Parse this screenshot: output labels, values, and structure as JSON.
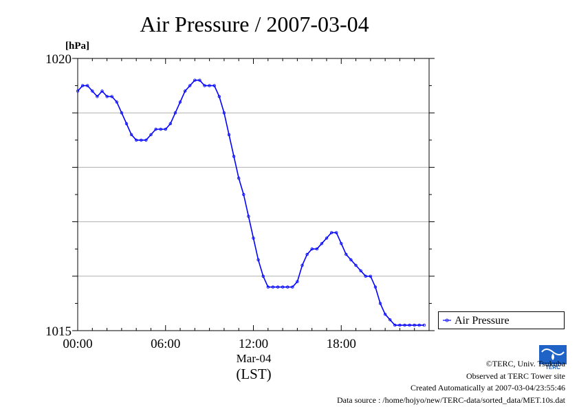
{
  "chart_data": {
    "type": "line",
    "title": "Air Pressure / 2007-03-04",
    "ylabel": "[hPa]",
    "xlabel": "Mar-04",
    "xunit": "(LST)",
    "ylim": [
      1015,
      1020
    ],
    "xlim": [
      "00:00",
      "24:00"
    ],
    "x_ticks": [
      "00:00",
      "06:00",
      "12:00",
      "18:00"
    ],
    "y_ticks": [
      "1015",
      "1020"
    ],
    "grid": "horizontal",
    "legend_position": "right, bottom",
    "series": [
      {
        "name": "Air Pressure",
        "color": "#0000ff",
        "x": [
          "00:00",
          "00:20",
          "00:40",
          "01:00",
          "01:20",
          "01:40",
          "02:00",
          "02:20",
          "02:40",
          "03:00",
          "03:20",
          "03:40",
          "04:00",
          "04:20",
          "04:40",
          "05:00",
          "05:20",
          "05:40",
          "06:00",
          "06:20",
          "06:40",
          "07:00",
          "07:20",
          "07:40",
          "08:00",
          "08:20",
          "08:40",
          "09:00",
          "09:20",
          "09:40",
          "10:00",
          "10:20",
          "10:40",
          "11:00",
          "11:20",
          "11:40",
          "12:00",
          "12:20",
          "12:40",
          "13:00",
          "13:20",
          "13:40",
          "14:00",
          "14:20",
          "14:40",
          "15:00",
          "15:20",
          "15:40",
          "16:00",
          "16:20",
          "16:40",
          "17:00",
          "17:20",
          "17:40",
          "18:00",
          "18:20",
          "18:40",
          "19:00",
          "19:20",
          "19:40",
          "20:00",
          "20:20",
          "20:40",
          "21:00",
          "21:20",
          "21:40",
          "22:00",
          "22:20",
          "22:40",
          "23:00",
          "23:20",
          "23:40"
        ],
        "values": [
          1019.4,
          1019.5,
          1019.5,
          1019.4,
          1019.3,
          1019.4,
          1019.3,
          1019.3,
          1019.2,
          1019.0,
          1018.8,
          1018.6,
          1018.5,
          1018.5,
          1018.5,
          1018.6,
          1018.7,
          1018.7,
          1018.7,
          1018.8,
          1019.0,
          1019.2,
          1019.4,
          1019.5,
          1019.6,
          1019.6,
          1019.5,
          1019.5,
          1019.5,
          1019.3,
          1019.0,
          1018.6,
          1018.2,
          1017.8,
          1017.5,
          1017.1,
          1016.7,
          1016.3,
          1016.0,
          1015.8,
          1015.8,
          1015.8,
          1015.8,
          1015.8,
          1015.8,
          1015.9,
          1016.2,
          1016.4,
          1016.5,
          1016.5,
          1016.6,
          1016.7,
          1016.8,
          1016.8,
          1016.6,
          1016.4,
          1016.3,
          1016.2,
          1016.1,
          1016.0,
          1016.0,
          1015.8,
          1015.5,
          1015.3,
          1015.2,
          1015.1,
          1015.1,
          1015.1,
          1015.1,
          1015.1,
          1015.1,
          1015.1
        ]
      }
    ]
  },
  "credits": {
    "copyright": "©TERC, Univ. Tsukuba",
    "observed": "Observed at TERC Tower site",
    "created": "Created Automatically at 2007-03-04/23:55:46",
    "source": "Data source : /home/hojyo/new/TERC-data/sorted_data/MET.10s.dat"
  },
  "logo": {
    "icon": "terc-logo-icon",
    "text": "TERC",
    "color": "#1f63c6"
  }
}
